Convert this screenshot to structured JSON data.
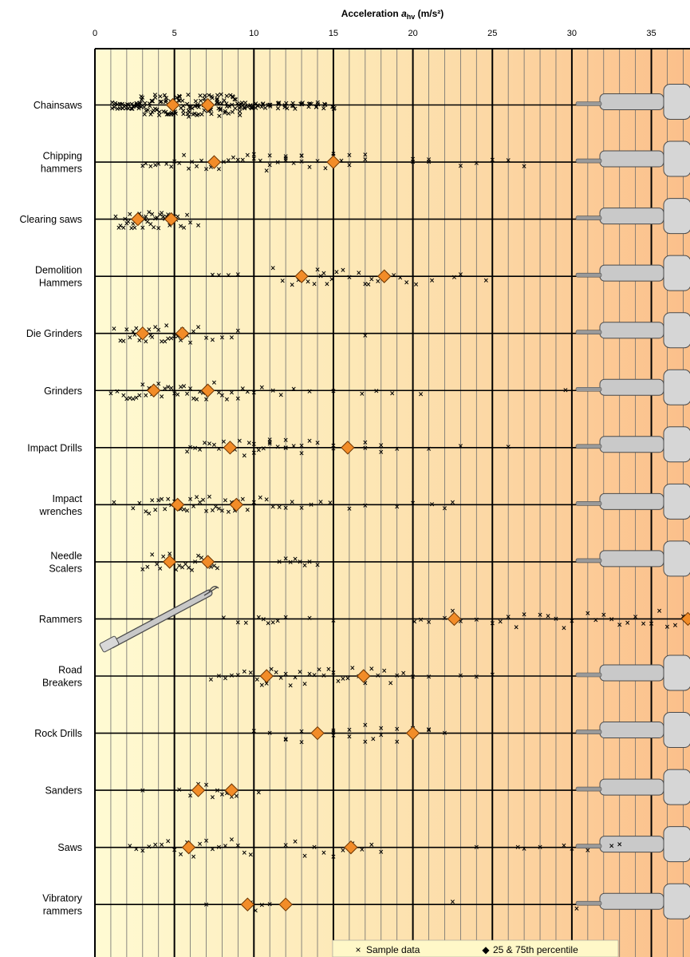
{
  "chart_data": {
    "type": "scatter",
    "orientation": "horizontal",
    "title": "",
    "xlabel": {
      "prefix": "Acceleration ",
      "symbol": "a",
      "subscript": "hv",
      "suffix": " (m/s²)"
    },
    "xlim": [
      0,
      37.5
    ],
    "x_ticks": [
      0,
      5,
      10,
      15,
      20,
      25,
      30,
      35
    ],
    "x_tick_labels": [
      "0",
      "5",
      "10",
      "15",
      "20",
      "25",
      "30",
      "35"
    ],
    "grid": "vertical every 1 m/s², bold every 5 m/s²",
    "background": "gradient from pale yellow to light orange",
    "legend": {
      "position": "bottom",
      "entries": [
        {
          "marker": "×",
          "label": "Sample data"
        },
        {
          "marker": "◆",
          "label": "25 & 75th percentile"
        }
      ]
    },
    "colors": {
      "sample_marker": "#000000",
      "percentile_marker": "#f28c28",
      "percentile_outline": "#6b3300",
      "bg_left": "#fffad2",
      "bg_right": "#fbc08c",
      "grid_minor": "#6b6b6b",
      "grid_major": "#000000"
    },
    "categories": [
      {
        "label": "Chainsaws",
        "display": [
          "Chainsaws"
        ],
        "percentiles": [
          4.9,
          7.1
        ],
        "samples": [
          1.2,
          1.5,
          1.8,
          2.0,
          2.2,
          2.4,
          2.6,
          2.8,
          3.0,
          3.2,
          3.4,
          3.6,
          3.8,
          4.0,
          4.2,
          4.4,
          4.6,
          4.8,
          5.0,
          5.2,
          5.4,
          5.6,
          5.8,
          6.0,
          6.2,
          6.4,
          6.6,
          6.8,
          7.0,
          7.2,
          7.4,
          7.6,
          7.8,
          8.0,
          8.2,
          8.4,
          8.6,
          8.8,
          9.0,
          9.2,
          9.5,
          9.8,
          10.2,
          10.6,
          11.0,
          11.5,
          12.0,
          12.5,
          13.0,
          13.5,
          14.0,
          14.5,
          15.0
        ]
      },
      {
        "label": "Chipping hammers",
        "display": [
          "Chipping",
          "hammers"
        ],
        "percentiles": [
          7.5,
          15.0
        ],
        "samples": [
          3.0,
          3.2,
          3.5,
          3.8,
          4.0,
          4.5,
          4.8,
          5.0,
          5.3,
          5.6,
          5.9,
          6.1,
          6.4,
          6.7,
          7.0,
          7.3,
          7.8,
          8.1,
          8.4,
          8.7,
          9.0,
          9.3,
          9.6,
          10.0,
          10.0,
          10.4,
          10.8,
          11.0,
          11.0,
          11.5,
          12.0,
          12.0,
          12.0,
          12.5,
          13.0,
          13.0,
          13.0,
          13.5,
          14.0,
          14.5,
          15.0,
          15.0,
          15.5,
          16.0,
          16.0,
          17.0,
          17.0,
          20.0,
          20.0,
          21.0,
          21.0,
          23.0,
          24.0,
          25.0,
          26.0,
          27.0
        ]
      },
      {
        "label": "Clearing saws",
        "display": [
          "Clearing saws"
        ],
        "percentiles": [
          2.7,
          4.8
        ],
        "samples": [
          1.3,
          1.5,
          1.6,
          1.8,
          1.9,
          2.0,
          2.1,
          2.2,
          2.3,
          2.4,
          2.5,
          2.6,
          2.7,
          2.8,
          2.9,
          3.0,
          3.0,
          3.1,
          3.2,
          3.3,
          3.4,
          3.5,
          3.6,
          3.7,
          3.8,
          3.9,
          4.0,
          4.1,
          4.2,
          4.3,
          4.4,
          4.5,
          4.6,
          4.7,
          4.8,
          4.9,
          5.0,
          5.1,
          5.2,
          5.4,
          5.6,
          5.8,
          6.0,
          6.5
        ]
      },
      {
        "label": "Demolition Hammers",
        "display": [
          "Demolition",
          "Hammers"
        ],
        "percentiles": [
          13.0,
          18.2
        ],
        "samples": [
          7.4,
          7.8,
          8.4,
          9.0,
          11.2,
          11.8,
          12.4,
          12.8,
          13.4,
          13.8,
          14.0,
          14.2,
          14.4,
          14.6,
          14.9,
          15.2,
          15.6,
          16.0,
          16.6,
          17.0,
          17.2,
          17.4,
          17.8,
          18.2,
          18.8,
          19.2,
          19.6,
          20.2,
          21.2,
          22.6,
          23.0,
          24.6
        ]
      },
      {
        "label": "Die Grinders",
        "display": [
          "Die Grinders"
        ],
        "percentiles": [
          3.0,
          5.5
        ],
        "samples": [
          1.2,
          1.6,
          1.8,
          2.0,
          2.2,
          2.4,
          2.5,
          2.6,
          2.8,
          3.0,
          3.2,
          3.4,
          3.5,
          3.6,
          3.8,
          4.0,
          4.2,
          4.4,
          4.5,
          4.6,
          4.8,
          5.0,
          5.2,
          5.4,
          5.5,
          5.8,
          6.0,
          6.2,
          6.5,
          7.0,
          7.4,
          8.0,
          8.6,
          9.0,
          17.0
        ]
      },
      {
        "label": "Grinders",
        "display": [
          "Grinders"
        ],
        "percentiles": [
          3.7,
          7.1
        ],
        "samples": [
          1.0,
          1.4,
          1.8,
          2.0,
          2.2,
          2.4,
          2.6,
          2.8,
          3.0,
          3.2,
          3.4,
          3.6,
          3.8,
          4.0,
          4.2,
          4.4,
          4.6,
          4.8,
          5.0,
          5.2,
          5.4,
          5.6,
          5.8,
          6.0,
          6.2,
          6.4,
          6.6,
          6.8,
          7.0,
          7.2,
          7.5,
          7.8,
          8.0,
          8.3,
          8.6,
          9.0,
          9.3,
          9.6,
          10.0,
          10.5,
          11.2,
          11.7,
          12.5,
          13.5,
          15.0,
          16.8,
          17.7,
          18.7,
          20.5,
          29.6
        ]
      },
      {
        "label": "Impact Drills",
        "display": [
          "Impact Drills"
        ],
        "percentiles": [
          8.5,
          15.9
        ],
        "samples": [
          5.8,
          6.0,
          6.3,
          6.6,
          6.9,
          7.2,
          7.5,
          7.8,
          8.1,
          8.4,
          8.8,
          9.1,
          9.4,
          9.7,
          10.0,
          10.0,
          10.3,
          10.6,
          11.0,
          11.0,
          11.0,
          11.5,
          12.0,
          12.0,
          12.0,
          12.5,
          13.0,
          13.0,
          13.5,
          14.0,
          15.0,
          15.0,
          16.0,
          17.0,
          17.0,
          18.0,
          18.0,
          19.0,
          21.0,
          23.0,
          26.0
        ]
      },
      {
        "label": "Impact wrenches",
        "display": [
          "Impact",
          "wrenches"
        ],
        "percentiles": [
          5.2,
          8.9
        ],
        "samples": [
          1.2,
          2.4,
          2.8,
          3.2,
          3.4,
          3.6,
          3.8,
          4.0,
          4.2,
          4.4,
          4.6,
          4.8,
          5.0,
          5.2,
          5.4,
          5.6,
          5.8,
          6.0,
          6.2,
          6.4,
          6.6,
          6.8,
          7.0,
          7.2,
          7.4,
          7.6,
          7.8,
          8.0,
          8.2,
          8.4,
          8.6,
          8.8,
          9.0,
          9.3,
          9.6,
          10.0,
          10.4,
          10.8,
          11.2,
          11.6,
          12.0,
          12.4,
          13.0,
          13.6,
          14.2,
          14.8,
          16.0,
          17.0,
          19.0,
          20.0,
          21.2,
          22.0,
          22.5
        ]
      },
      {
        "label": "Needle Scalers",
        "display": [
          "Needle",
          "Scalers"
        ],
        "percentiles": [
          4.7,
          7.1
        ],
        "samples": [
          3.0,
          3.3,
          3.6,
          3.9,
          4.1,
          4.3,
          4.5,
          4.7,
          4.9,
          5.1,
          5.3,
          5.5,
          5.7,
          5.9,
          6.1,
          6.3,
          6.5,
          6.7,
          6.9,
          7.1,
          7.3,
          7.5,
          7.7,
          11.6,
          12.0,
          12.3,
          12.6,
          12.9,
          13.2,
          13.5,
          14.0
        ]
      },
      {
        "label": "Rammers",
        "display": [
          "Rammers"
        ],
        "percentiles": [
          22.6,
          37.3
        ],
        "samples": [
          8.1,
          9.0,
          9.5,
          10.3,
          10.6,
          10.9,
          11.2,
          11.5,
          12.0,
          13.5,
          15.0,
          20.1,
          20.5,
          21.0,
          22.0,
          22.5,
          23.0,
          24.0,
          25.0,
          25.5,
          26.0,
          26.5,
          27.0,
          28.0,
          28.5,
          29.0,
          29.5,
          30.0,
          31.0,
          31.5,
          32.0,
          32.5,
          33.0,
          33.5,
          34.0,
          34.5,
          35.0,
          35.5,
          36.0,
          36.5,
          37.0
        ]
      },
      {
        "label": "Road Breakers",
        "display": [
          "Road",
          "Breakers"
        ],
        "percentiles": [
          10.8,
          16.9
        ],
        "samples": [
          7.3,
          7.8,
          8.2,
          8.6,
          9.0,
          9.4,
          9.8,
          10.2,
          10.5,
          10.8,
          11.1,
          11.4,
          11.7,
          12.0,
          12.3,
          12.6,
          12.9,
          13.2,
          13.5,
          13.8,
          14.1,
          14.4,
          14.7,
          15.0,
          15.3,
          15.6,
          15.9,
          16.2,
          16.6,
          17.0,
          17.4,
          17.8,
          18.2,
          18.6,
          19.0,
          19.4,
          20.0,
          21.0,
          23.0,
          24.0,
          25.0
        ]
      },
      {
        "label": "Rock Drills",
        "display": [
          "Rock Drills"
        ],
        "percentiles": [
          14.0,
          20.0
        ],
        "samples": [
          10.0,
          11.0,
          12.0,
          12.0,
          13.0,
          13.0,
          14.0,
          14.0,
          15.0,
          15.0,
          15.0,
          16.0,
          16.0,
          17.0,
          17.0,
          17.5,
          18.0,
          18.0,
          19.0,
          19.0,
          20.0,
          20.0,
          21.0,
          21.0,
          22.0
        ]
      },
      {
        "label": "Sanders",
        "display": [
          "Sanders"
        ],
        "percentiles": [
          6.5,
          8.6
        ],
        "samples": [
          3.0,
          5.3,
          6.0,
          6.5,
          7.0,
          7.4,
          7.7,
          8.0,
          8.3,
          8.6,
          8.9,
          10.3
        ]
      },
      {
        "label": "Saws",
        "display": [
          "Saws"
        ],
        "percentiles": [
          5.9,
          16.1
        ],
        "samples": [
          2.2,
          2.6,
          3.0,
          3.4,
          3.8,
          4.2,
          4.6,
          5.0,
          5.4,
          5.8,
          6.2,
          6.6,
          7.0,
          7.4,
          7.8,
          8.2,
          8.6,
          9.0,
          9.4,
          9.8,
          12.0,
          12.6,
          13.2,
          13.8,
          14.4,
          15.0,
          15.6,
          16.2,
          16.8,
          17.4,
          18.0,
          24.0,
          26.6,
          27.0,
          28.0,
          29.5,
          30.0,
          31.0,
          32.5,
          33.0
        ]
      },
      {
        "label": "Vibratory rammers",
        "display": [
          "Vibratory",
          "rammers"
        ],
        "percentiles": [
          9.6,
          12.0
        ],
        "samples": [
          7.0,
          9.8,
          10.1,
          10.5,
          11.0,
          22.5,
          30.3
        ]
      }
    ]
  }
}
